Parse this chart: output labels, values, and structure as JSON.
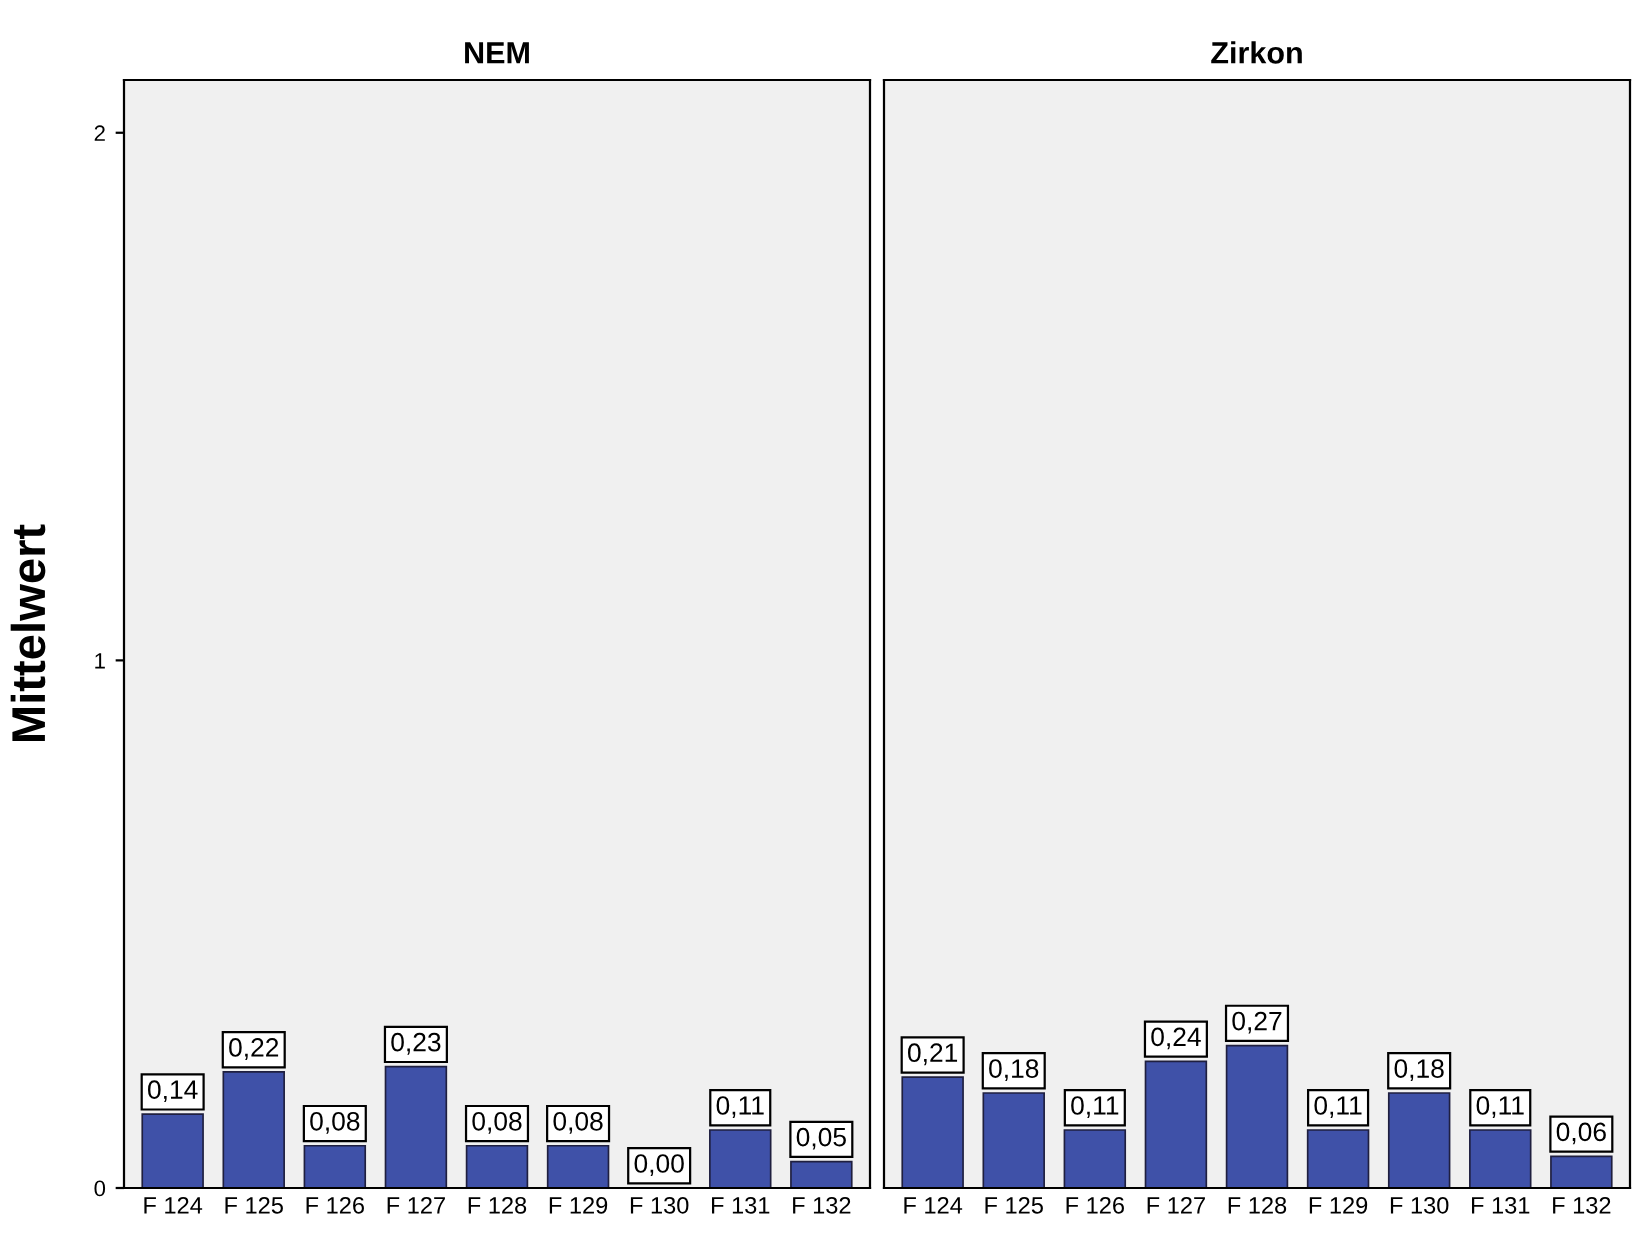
{
  "chart_data": [
    {
      "type": "bar",
      "title": "NEM",
      "ylabel": "Mittelwert",
      "categories": [
        "F 124",
        "F 125",
        "F 126",
        "F 127",
        "F 128",
        "F 129",
        "F 130",
        "F 131",
        "F 132"
      ],
      "values": [
        0.14,
        0.22,
        0.08,
        0.23,
        0.08,
        0.08,
        0.0,
        0.11,
        0.05
      ],
      "value_labels": [
        "0,14",
        "0,22",
        "0,08",
        "0,23",
        "0,08",
        "0,08",
        "0,00",
        "0,11",
        "0,05"
      ],
      "color": "#3f51a8",
      "ylim": [
        0,
        2.1
      ],
      "yticks": [
        0,
        1,
        2
      ],
      "grid": false,
      "legend": false
    },
    {
      "type": "bar",
      "title": "Zirkon",
      "categories": [
        "F 124",
        "F 125",
        "F 126",
        "F 127",
        "F 128",
        "F 129",
        "F 130",
        "F 131",
        "F 132"
      ],
      "values": [
        0.21,
        0.18,
        0.11,
        0.24,
        0.27,
        0.11,
        0.18,
        0.11,
        0.06
      ],
      "value_labels": [
        "0,21",
        "0,18",
        "0,11",
        "0,24",
        "0,27",
        "0,11",
        "0,18",
        "0,11",
        "0,06"
      ],
      "color": "#3f51a8",
      "ylim": [
        0,
        2.1
      ],
      "yticks": [
        0,
        1,
        2
      ],
      "grid": false,
      "legend": false,
      "tick_labels": "x"
    }
  ]
}
